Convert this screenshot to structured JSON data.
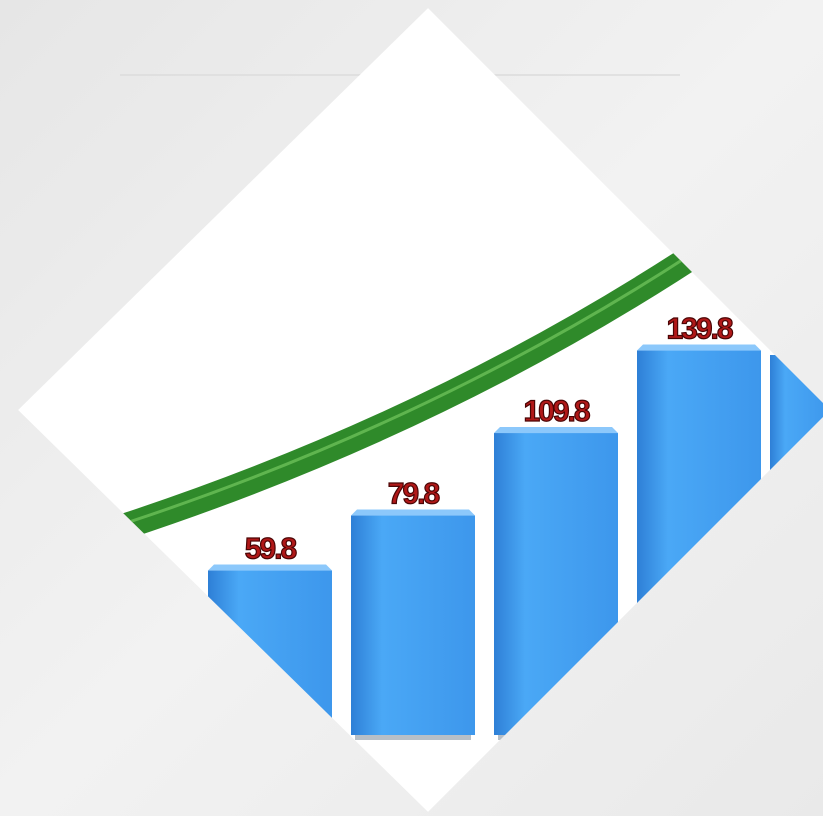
{
  "chart_data": {
    "type": "bar",
    "values": [
      59.8,
      79.8,
      109.8,
      139.8
    ],
    "color": "#3f9cf0"
  }
}
